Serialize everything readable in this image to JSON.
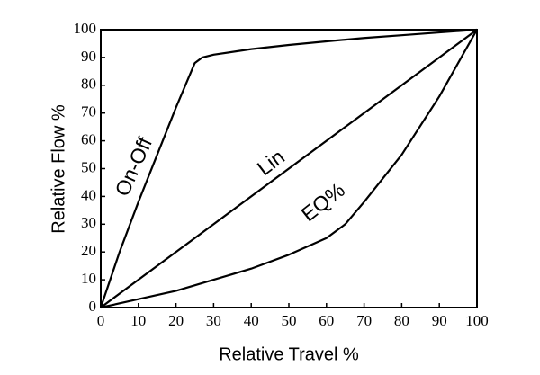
{
  "chart_data": {
    "type": "line",
    "xlabel": "Relative Travel %",
    "ylabel": "Relative Flow %",
    "xlim": [
      0,
      100
    ],
    "ylim": [
      0,
      100
    ],
    "xticks": [
      0,
      10,
      20,
      30,
      40,
      50,
      60,
      70,
      80,
      90,
      100
    ],
    "yticks": [
      0,
      10,
      20,
      30,
      40,
      50,
      60,
      70,
      80,
      90,
      100
    ],
    "series": [
      {
        "name": "On-Off",
        "color": "#000000",
        "x": [
          0,
          5,
          10,
          15,
          20,
          25,
          27,
          30,
          40,
          50,
          60,
          70,
          80,
          90,
          100
        ],
        "values": [
          0,
          20,
          38,
          55,
          72,
          88,
          90,
          91,
          93,
          94.5,
          95.8,
          97,
          98,
          99,
          100
        ]
      },
      {
        "name": "Lin",
        "color": "#000000",
        "x": [
          0,
          100
        ],
        "values": [
          0,
          100
        ]
      },
      {
        "name": "EQ%",
        "color": "#000000",
        "x": [
          0,
          10,
          20,
          30,
          40,
          50,
          60,
          65,
          70,
          80,
          90,
          100
        ],
        "values": [
          0,
          3,
          6,
          10,
          14,
          19,
          25,
          30,
          38,
          55,
          76,
          100
        ]
      }
    ]
  }
}
